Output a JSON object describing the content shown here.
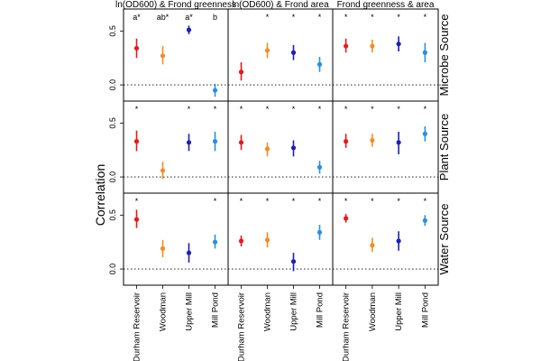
{
  "chart_data": {
    "type": "scatter",
    "ylabel": "Correlation",
    "ylim": [
      -0.15,
      0.62
    ],
    "yticks": [
      0.0,
      0.5
    ],
    "ytick_labels": [
      "0.0",
      "0.5"
    ],
    "reference_line": 0.0,
    "categories": [
      "Durham Reservoir",
      "Woodman",
      "Upper Mill",
      "Mill Pond"
    ],
    "category_colors": [
      "#e31a1c",
      "#f28c28",
      "#1f1fb4",
      "#2a8fe0"
    ],
    "columns": [
      "ln(OD600) & Frond greenness",
      "ln(OD600) & Frond area",
      "Frond greenness & area"
    ],
    "rows": [
      "Microbe Source",
      "Plant Source",
      "Water Source"
    ],
    "panels": [
      {
        "row": 0,
        "col": 0,
        "estimates": [
          0.34,
          0.27,
          0.51,
          -0.05
        ],
        "lower": [
          0.25,
          0.19,
          0.47,
          -0.11
        ],
        "upper": [
          0.43,
          0.36,
          0.55,
          0.01
        ],
        "marks": [
          "a*",
          "ab*",
          "a*",
          "b"
        ]
      },
      {
        "row": 0,
        "col": 1,
        "estimates": [
          0.12,
          0.32,
          0.3,
          0.19
        ],
        "lower": [
          0.04,
          0.25,
          0.23,
          0.12
        ],
        "upper": [
          0.21,
          0.39,
          0.37,
          0.26
        ],
        "marks": [
          "",
          "*",
          "*",
          "*"
        ]
      },
      {
        "row": 0,
        "col": 2,
        "estimates": [
          0.36,
          0.36,
          0.38,
          0.3
        ],
        "lower": [
          0.3,
          0.3,
          0.31,
          0.21
        ],
        "upper": [
          0.43,
          0.42,
          0.45,
          0.39
        ],
        "marks": [
          "*",
          "*",
          "*",
          "*"
        ]
      },
      {
        "row": 1,
        "col": 0,
        "estimates": [
          0.33,
          0.06,
          0.32,
          0.33
        ],
        "lower": [
          0.24,
          -0.02,
          0.24,
          0.24
        ],
        "upper": [
          0.43,
          0.14,
          0.4,
          0.42
        ],
        "marks": [
          "*",
          "",
          "*",
          "*"
        ]
      },
      {
        "row": 1,
        "col": 1,
        "estimates": [
          0.32,
          0.26,
          0.27,
          0.09
        ],
        "lower": [
          0.25,
          0.19,
          0.19,
          0.03
        ],
        "upper": [
          0.39,
          0.32,
          0.34,
          0.15
        ],
        "marks": [
          "*",
          "*",
          "*",
          "*"
        ]
      },
      {
        "row": 1,
        "col": 2,
        "estimates": [
          0.33,
          0.34,
          0.32,
          0.4
        ],
        "lower": [
          0.27,
          0.28,
          0.21,
          0.33
        ],
        "upper": [
          0.4,
          0.4,
          0.42,
          0.47
        ],
        "marks": [
          "*",
          "*",
          "*",
          "*"
        ]
      },
      {
        "row": 2,
        "col": 0,
        "estimates": [
          0.46,
          0.19,
          0.15,
          0.25
        ],
        "lower": [
          0.38,
          0.11,
          0.06,
          0.19
        ],
        "upper": [
          0.55,
          0.27,
          0.24,
          0.32
        ],
        "marks": [
          "*",
          "",
          "",
          "*"
        ]
      },
      {
        "row": 2,
        "col": 1,
        "estimates": [
          0.26,
          0.27,
          0.07,
          0.34
        ],
        "lower": [
          0.21,
          0.2,
          -0.02,
          0.27
        ],
        "upper": [
          0.31,
          0.34,
          0.15,
          0.41
        ],
        "marks": [
          "*",
          "*",
          "*",
          "*"
        ]
      },
      {
        "row": 2,
        "col": 2,
        "estimates": [
          0.47,
          0.22,
          0.26,
          0.45
        ],
        "lower": [
          0.43,
          0.16,
          0.17,
          0.4
        ],
        "upper": [
          0.51,
          0.29,
          0.35,
          0.5
        ],
        "marks": [
          "*",
          "*",
          "*",
          "*"
        ]
      }
    ]
  }
}
